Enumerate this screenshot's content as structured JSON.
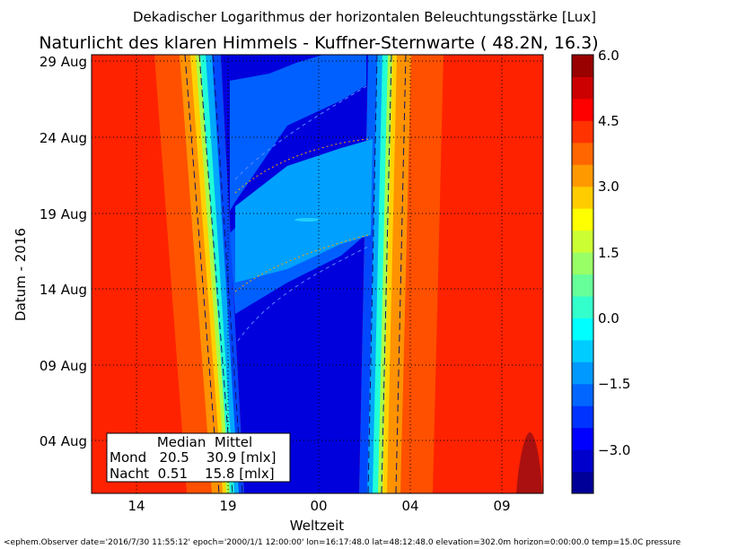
{
  "chart_data": {
    "type": "heatmap",
    "suptitle": "Dekadischer Logarithmus der horizontalen Beleuchtungsstärke [Lux]",
    "title": "Naturlicht des klaren Himmels - Kuffner-Sternwarte ( 48.2N, 16.3)",
    "xlabel": "Weltzeit",
    "ylabel": "Datum - 2016",
    "x_ticks": [
      "14",
      "19",
      "00",
      "04",
      "09"
    ],
    "y_ticks": [
      "04 Aug",
      "09 Aug",
      "14 Aug",
      "19 Aug",
      "24 Aug",
      "29 Aug"
    ],
    "grid": true,
    "colorbar": {
      "ticks": [
        "6.0",
        "4.5",
        "3.0",
        "1.5",
        "0.0",
        "−1.5",
        "−3.0"
      ],
      "range": [
        -4.0,
        6.0
      ],
      "levels": 20
    },
    "table": {
      "header": "Median  Mittel",
      "rows": [
        "Mond   20.5    30.9 [mlx]",
        "Nacht  0.51    15.8 [mlx]"
      ]
    },
    "footer": "<ephem.Observer date='2016/7/30 11:55:12' epoch='2000/1/1 12:00:00' lon=16:17:48.0 lat=48:12:48.0 elevation=302.0m horizon=0:00:00.0 temp=15.0C pressure"
  }
}
